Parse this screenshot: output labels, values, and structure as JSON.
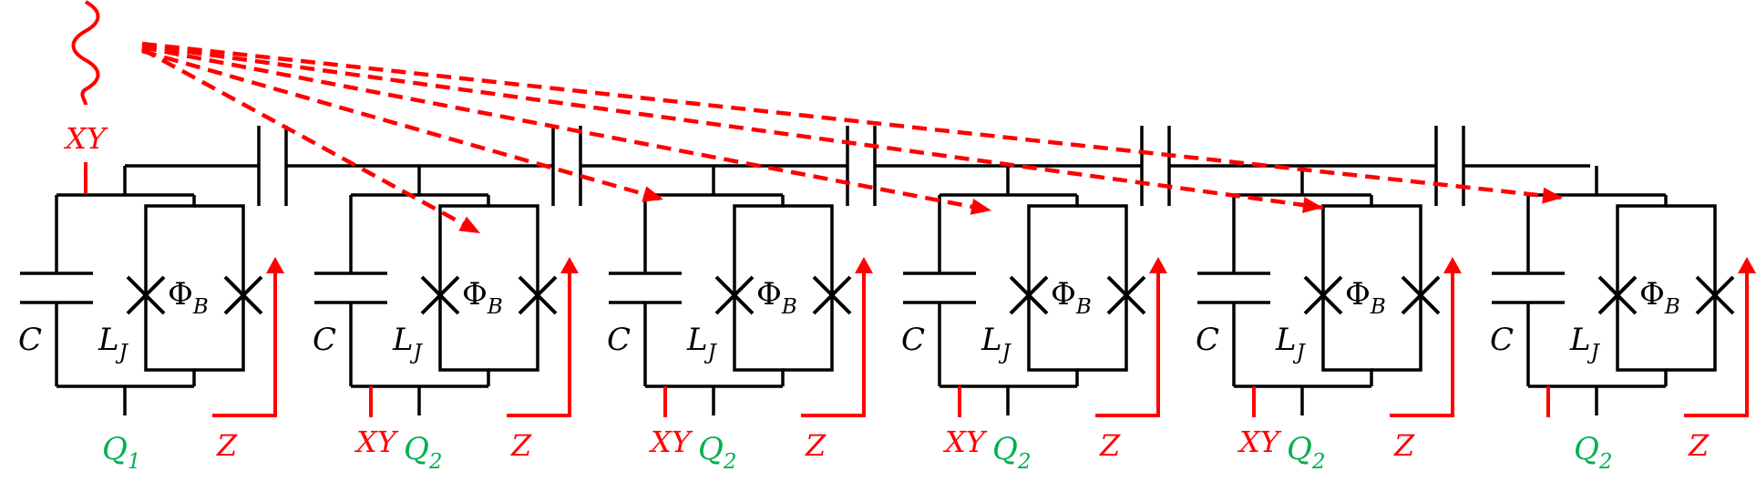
{
  "colors": {
    "wire": "#000000",
    "control": "#ff0000",
    "qubit": "#00b050"
  },
  "signal_source": {
    "label": "XY"
  },
  "qubits": [
    {
      "id": "Q",
      "sub": "1",
      "cap_label": "C",
      "ind_label": "L",
      "ind_sub": "J",
      "flux_label": "Φ",
      "flux_sub": "B",
      "xy_label": "",
      "z_label": "Z"
    },
    {
      "id": "Q",
      "sub": "2",
      "cap_label": "C",
      "ind_label": "L",
      "ind_sub": "J",
      "flux_label": "Φ",
      "flux_sub": "B",
      "xy_label": "XY",
      "z_label": "Z"
    },
    {
      "id": "Q",
      "sub": "2",
      "cap_label": "C",
      "ind_label": "L",
      "ind_sub": "J",
      "flux_label": "Φ",
      "flux_sub": "B",
      "xy_label": "XY",
      "z_label": "Z"
    },
    {
      "id": "Q",
      "sub": "2",
      "cap_label": "C",
      "ind_label": "L",
      "ind_sub": "J",
      "flux_label": "Φ",
      "flux_sub": "B",
      "xy_label": "XY",
      "z_label": "Z"
    },
    {
      "id": "Q",
      "sub": "2",
      "cap_label": "C",
      "ind_label": "L",
      "ind_sub": "J",
      "flux_label": "Φ",
      "flux_sub": "B",
      "xy_label": "XY",
      "z_label": "Z"
    },
    {
      "id": "Q",
      "sub": "2",
      "cap_label": "C",
      "ind_label": "L",
      "ind_sub": "J",
      "flux_label": "Φ",
      "flux_sub": "B",
      "xy_label": "",
      "z_label": "Z"
    }
  ]
}
